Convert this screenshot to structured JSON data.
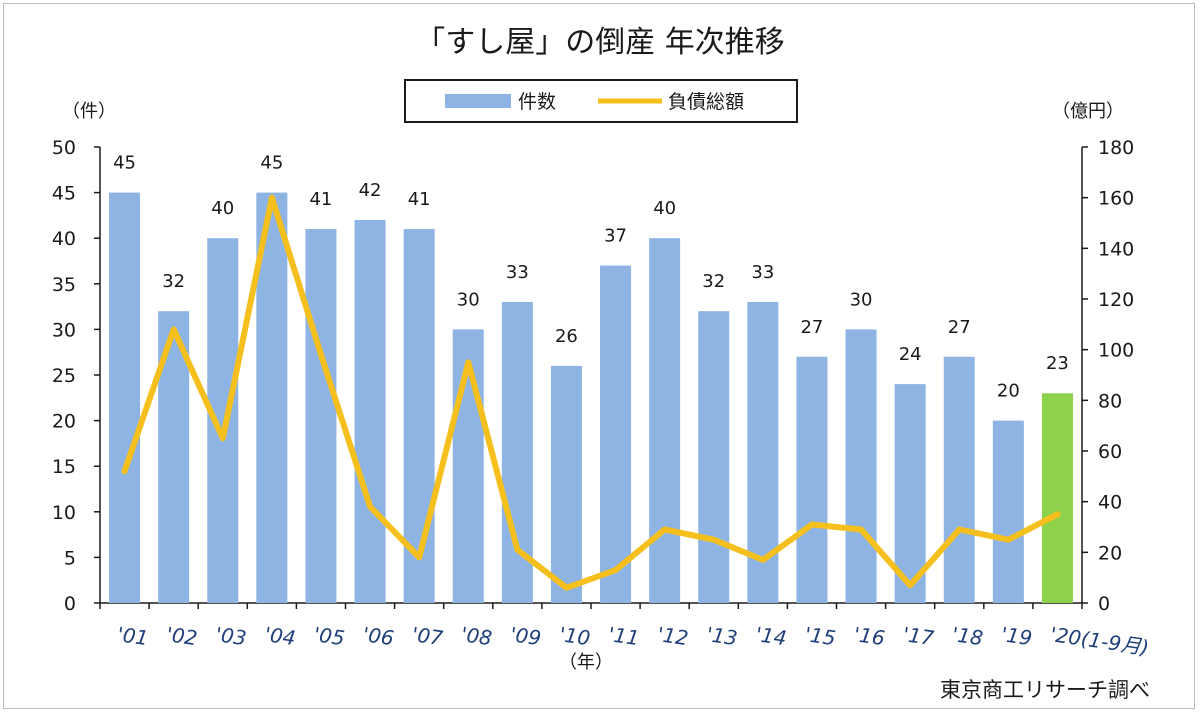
{
  "chart_data": {
    "type": "bar",
    "title": "「すし屋」の倒産 年次推移",
    "categories": [
      "'01",
      "'02",
      "'03",
      "'04",
      "'05",
      "'06",
      "'07",
      "'08",
      "'09",
      "'10",
      "'11",
      "'12",
      "'13",
      "'14",
      "'15",
      "'16",
      "'17",
      "'18",
      "'19",
      "'20(1-9月)"
    ],
    "series": [
      {
        "name": "件数",
        "type": "bar",
        "axis": "left",
        "color": "#8eb4e3",
        "highlight_color": "#8ed14a",
        "highlight_index": 19,
        "values": [
          45,
          32,
          40,
          45,
          41,
          42,
          41,
          30,
          33,
          26,
          37,
          40,
          32,
          33,
          27,
          30,
          24,
          27,
          20,
          23
        ]
      },
      {
        "name": "負債総額",
        "type": "line",
        "axis": "right",
        "color": "#f5c01e",
        "values": [
          52,
          108,
          65,
          160,
          98,
          38,
          18,
          95,
          21,
          6,
          13,
          29,
          25,
          17,
          31,
          29,
          7,
          29,
          25,
          35
        ]
      }
    ],
    "y_left": {
      "label": "（件）",
      "min": 0,
      "max": 50,
      "step": 5
    },
    "y_right": {
      "label": "（億円）",
      "min": 0,
      "max": 180,
      "step": 20
    },
    "xlabel": "（年）",
    "legend_position": "top-center",
    "grid": false,
    "source": "東京商工リサーチ調べ"
  }
}
